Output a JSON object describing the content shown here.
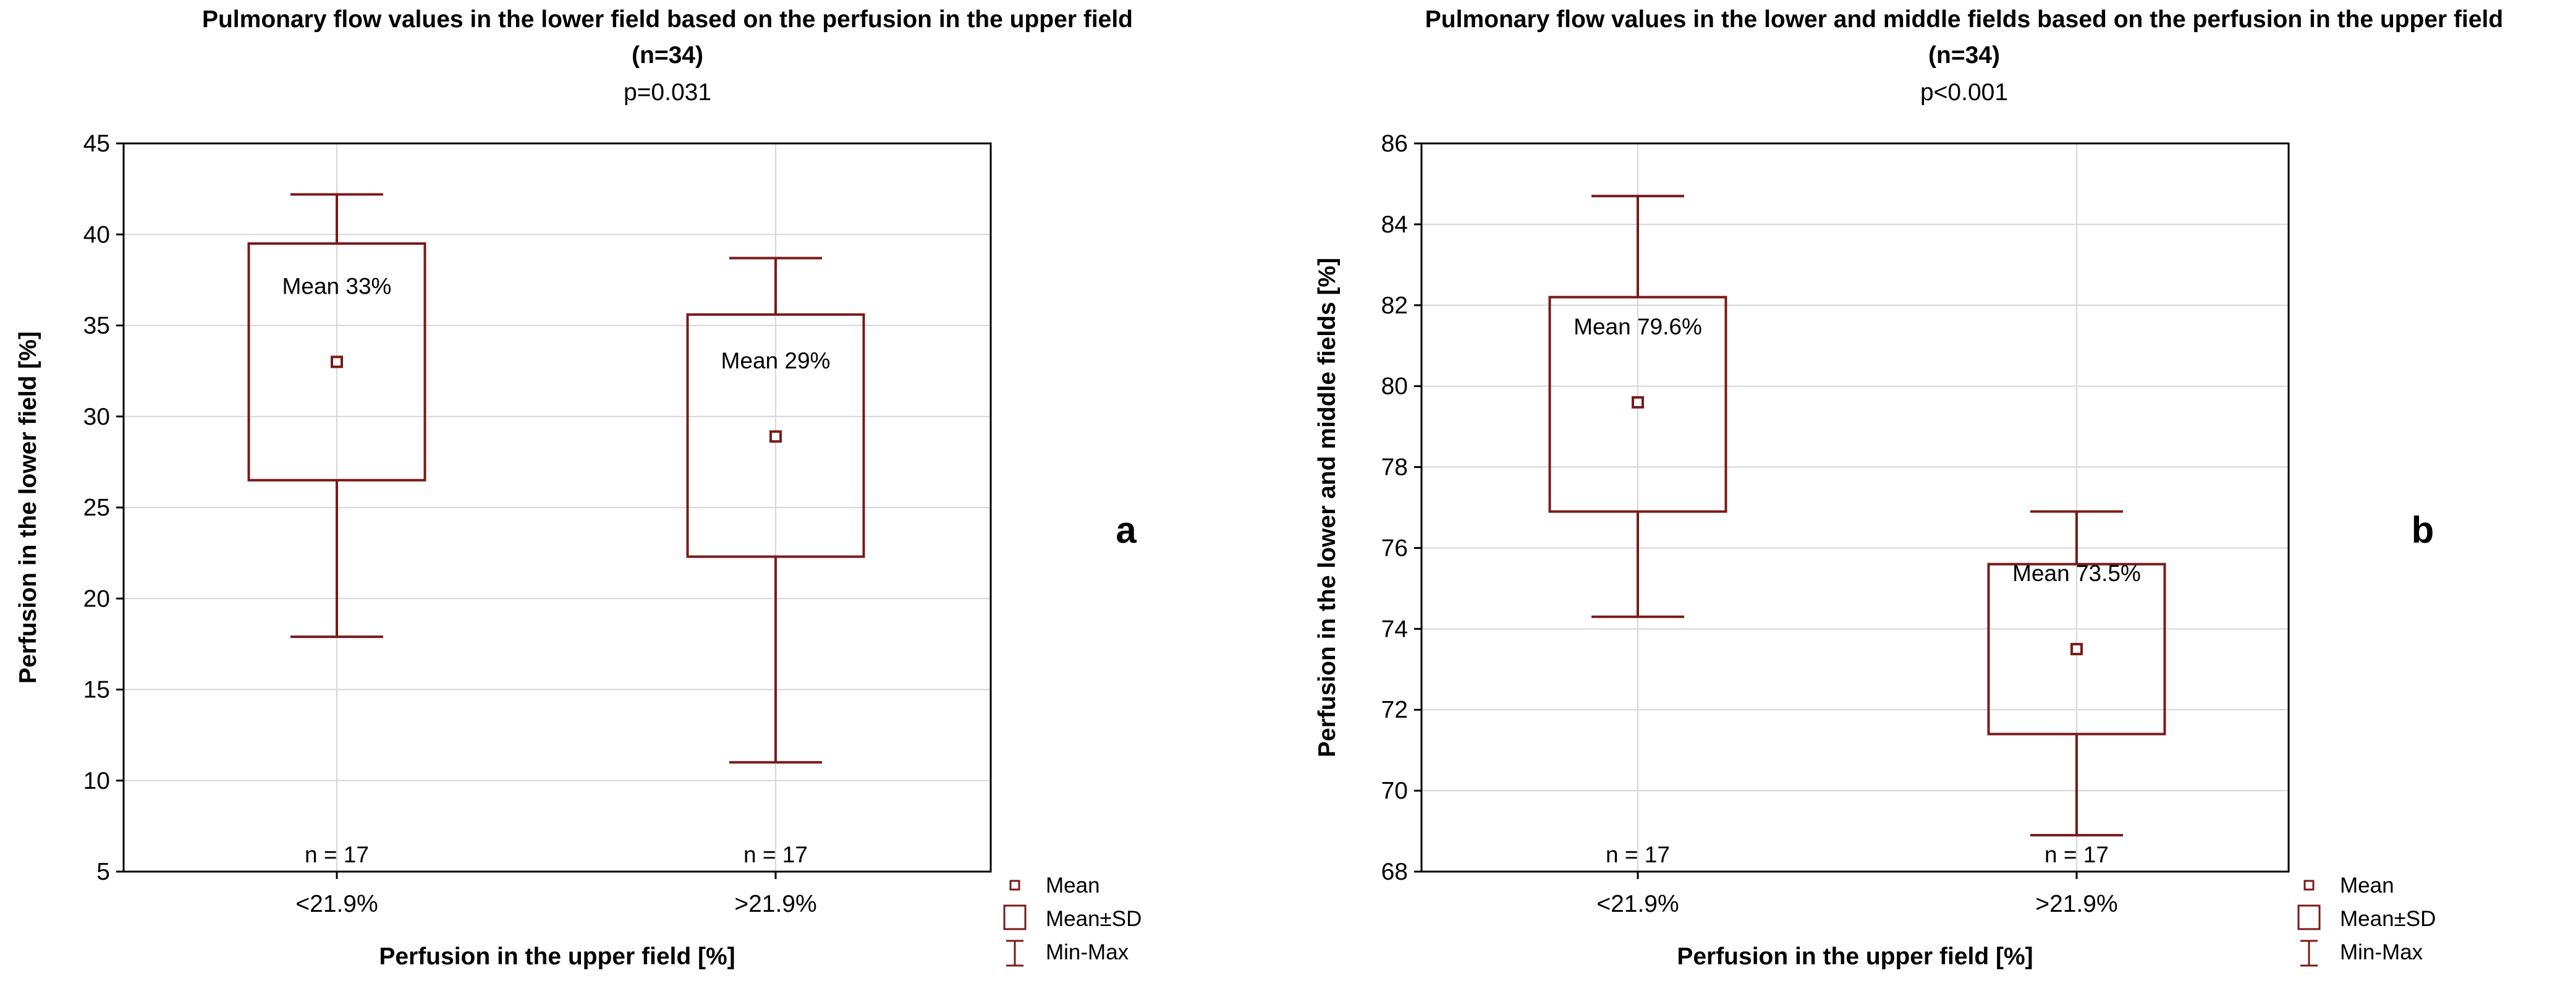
{
  "colors": {
    "box": "#7a1a1a",
    "grid": "#d6d6d6",
    "frame": "#000000"
  },
  "chart_data": [
    {
      "type": "box",
      "title": "Pulmonary flow values in the lower field based on the perfusion in the upper field",
      "n_label": "(n=34)",
      "p_label": "p=0.031",
      "xlabel": "Perfusion in the upper field [%]",
      "ylabel": "Perfusion in the lower field [%]",
      "ylim": [
        5,
        45
      ],
      "yticks": [
        5,
        10,
        15,
        20,
        25,
        30,
        35,
        40,
        45
      ],
      "categories": [
        "<21.9%",
        ">21.9%"
      ],
      "groups": [
        {
          "category": "<21.9%",
          "mean": 33.0,
          "sd_low": 26.5,
          "sd_high": 39.5,
          "min": 17.9,
          "max": 42.2,
          "annotation": "Mean 33%",
          "n": "n = 17"
        },
        {
          "category": ">21.9%",
          "mean": 28.9,
          "sd_low": 22.3,
          "sd_high": 35.6,
          "min": 11.0,
          "max": 38.7,
          "annotation": "Mean 29%",
          "n": "n = 17"
        }
      ],
      "panel_label": "a",
      "legend": [
        "Mean",
        "Mean±SD",
        "Min-Max"
      ]
    },
    {
      "type": "box",
      "title": "Pulmonary flow values in the lower and middle fields based on the perfusion in the upper field",
      "n_label": "(n=34)",
      "p_label": "p<0.001",
      "xlabel": "Perfusion in the upper field [%]",
      "ylabel": "Perfusion in the lower and middle fields [%]",
      "ylim": [
        68,
        86
      ],
      "yticks": [
        68,
        70,
        72,
        74,
        76,
        78,
        80,
        82,
        84,
        86
      ],
      "categories": [
        "<21.9%",
        ">21.9%"
      ],
      "groups": [
        {
          "category": "<21.9%",
          "mean": 79.6,
          "sd_low": 76.9,
          "sd_high": 82.2,
          "min": 74.3,
          "max": 84.7,
          "annotation": "Mean 79.6%",
          "n": "n = 17"
        },
        {
          "category": ">21.9%",
          "mean": 73.5,
          "sd_low": 71.4,
          "sd_high": 75.6,
          "min": 68.9,
          "max": 76.9,
          "annotation": "Mean 73.5%",
          "n": "n = 17"
        }
      ],
      "panel_label": "b",
      "legend": [
        "Mean",
        "Mean±SD",
        "Min-Max"
      ]
    }
  ]
}
